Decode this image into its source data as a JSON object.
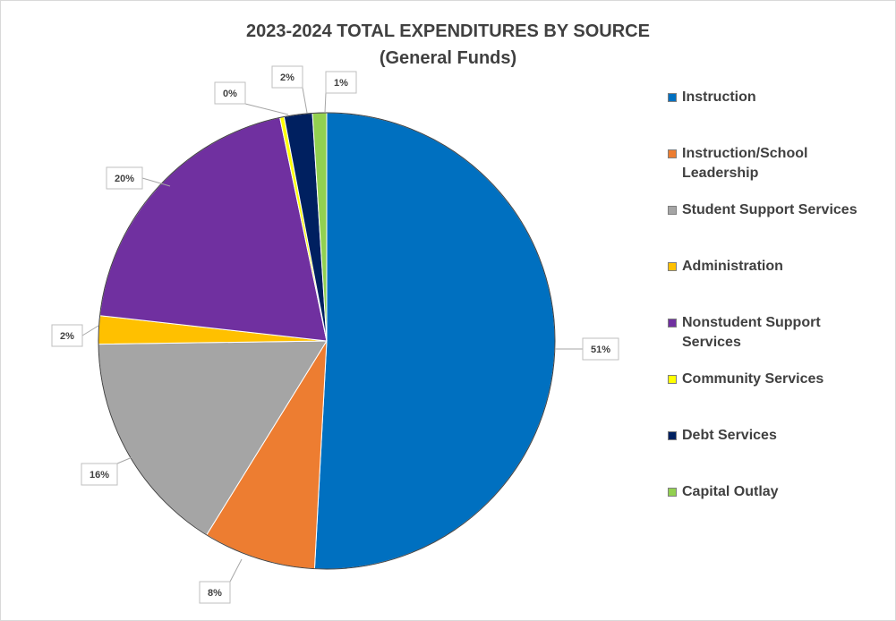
{
  "chart_data": {
    "type": "pie",
    "title": "2023-2024 TOTAL EXPENDITURES BY SOURCE",
    "subtitle": "(General Funds)",
    "slices": [
      {
        "name": "Instruction",
        "value": 51,
        "label": "51%",
        "color": "#0070c0"
      },
      {
        "name": "Instruction/School Leadership",
        "value": 8,
        "label": "8%",
        "color": "#ed7d31"
      },
      {
        "name": "Student Support Services",
        "value": 16,
        "label": "16%",
        "color": "#a5a5a5"
      },
      {
        "name": "Administration",
        "value": 2,
        "label": "2%",
        "color": "#ffc000"
      },
      {
        "name": "Nonstudent Support Services",
        "value": 20,
        "label": "20%",
        "color": "#7030a0"
      },
      {
        "name": "Community Services",
        "value": 0.3,
        "label": "0%",
        "color": "#ffff00"
      },
      {
        "name": "Debt Services",
        "value": 2,
        "label": "2%",
        "color": "#002060"
      },
      {
        "name": "Capital Outlay",
        "value": 1,
        "label": "1%",
        "color": "#92d050"
      }
    ],
    "legend_position": "right"
  }
}
